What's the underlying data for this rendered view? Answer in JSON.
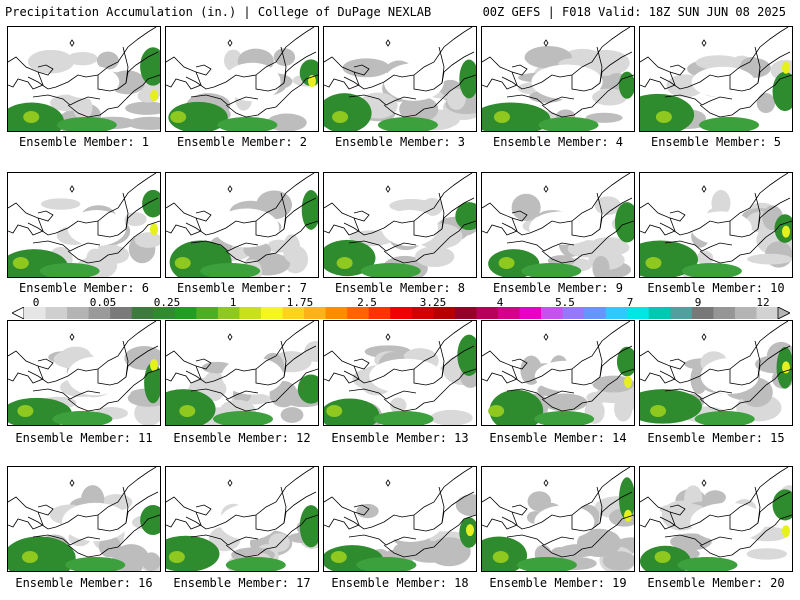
{
  "header": {
    "title_left": "Precipitation Accumulation (in.) | College of DuPage NEXLAB",
    "title_right": "00Z GEFS | F018 Valid: 18Z SUN JUN 08 2025"
  },
  "members": [
    {
      "label": "Ensemble Member: 1"
    },
    {
      "label": "Ensemble Member: 2"
    },
    {
      "label": "Ensemble Member: 3"
    },
    {
      "label": "Ensemble Member: 4"
    },
    {
      "label": "Ensemble Member: 5"
    },
    {
      "label": "Ensemble Member: 6"
    },
    {
      "label": "Ensemble Member: 7"
    },
    {
      "label": "Ensemble Member: 8"
    },
    {
      "label": "Ensemble Member: 9"
    },
    {
      "label": "Ensemble Member: 10"
    },
    {
      "label": "Ensemble Member: 11"
    },
    {
      "label": "Ensemble Member: 12"
    },
    {
      "label": "Ensemble Member: 13"
    },
    {
      "label": "Ensemble Member: 14"
    },
    {
      "label": "Ensemble Member: 15"
    },
    {
      "label": "Ensemble Member: 16"
    },
    {
      "label": "Ensemble Member: 17"
    },
    {
      "label": "Ensemble Member: 18"
    },
    {
      "label": "Ensemble Member: 19"
    },
    {
      "label": "Ensemble Member: 20"
    }
  ],
  "colorbar": {
    "labels": [
      "0",
      "0.05",
      "0.25",
      "1",
      "1.75",
      "2.5",
      "3.25",
      "4",
      "5.5",
      "7",
      "9",
      "12"
    ],
    "colors": [
      "#e6e6e6",
      "#cfcfcf",
      "#b4b4b4",
      "#9a9a9a",
      "#7a7a7a",
      "#3d7a3d",
      "#2e8b2e",
      "#1f9e1f",
      "#4caf1f",
      "#8fc81f",
      "#c8e01f",
      "#f5f51f",
      "#ffd21f",
      "#ffb01f",
      "#ff8c00",
      "#ff6400",
      "#ff3200",
      "#f00000",
      "#d20000",
      "#b40000",
      "#960028",
      "#b4005a",
      "#d2008c",
      "#e600c8",
      "#c850f0",
      "#9678ff",
      "#6496ff",
      "#32c8ff",
      "#00e6e6",
      "#00c8b4",
      "#50a0a0",
      "#787878",
      "#969696",
      "#b4b4b4",
      "#d2d2d2"
    ]
  },
  "colors": {
    "land_light": "#d9d9d9",
    "land_mid": "#bdbdbd",
    "green_dark": "#2e8b2e",
    "green_mid": "#3ca03c",
    "green_light": "#8fc81f",
    "yellow": "#e6f01f"
  }
}
